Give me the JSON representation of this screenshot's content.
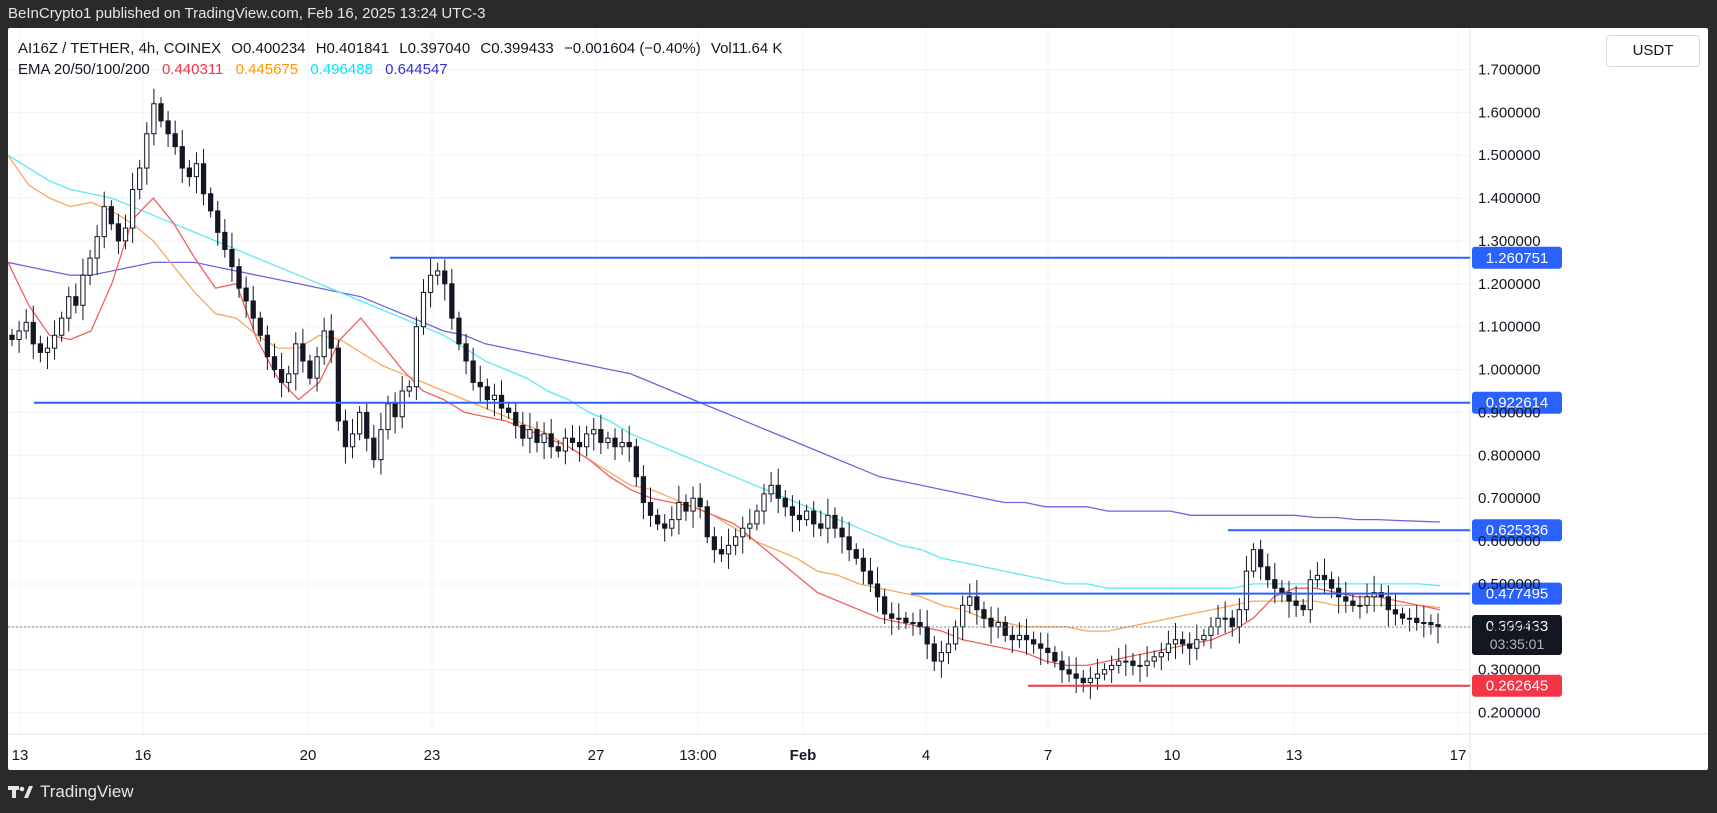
{
  "header": {
    "publisher_text": "BeInCrypto1 published on TradingView.com, Feb 16, 2025 13:24 UTC-3"
  },
  "footer": {
    "brand": "TradingView"
  },
  "legend": {
    "symbol": "AI16Z / TETHER, 4h, COINEX",
    "open": "O0.400234",
    "high": "H0.401841",
    "low": "L0.397040",
    "close": "C0.399433",
    "change": "−0.001604 (−0.40%)",
    "volume": "Vol11.64 K",
    "ema_label": "EMA 20/50/100/200",
    "ema_values": [
      {
        "value": "0.440311",
        "color": "#f23645"
      },
      {
        "value": "0.445675",
        "color": "#ff9800"
      },
      {
        "value": "0.496488",
        "color": "#00e5ff"
      },
      {
        "value": "0.644547",
        "color": "#2f2fd6"
      }
    ]
  },
  "currency": "USDT",
  "chart_data": {
    "type": "candlestick",
    "ylim": [
      0.15,
      1.75
    ],
    "y_ticks": [
      "1.700000",
      "1.600000",
      "1.500000",
      "1.400000",
      "1.300000",
      "1.200000",
      "1.100000",
      "1.000000",
      "0.900000",
      "0.800000",
      "0.700000",
      "0.600000",
      "0.500000",
      "0.400000",
      "0.300000",
      "0.200000"
    ],
    "x_ticks": [
      "13",
      "16",
      "20",
      "23",
      "27",
      "13:00",
      "Feb",
      "4",
      "7",
      "10",
      "13",
      "17"
    ],
    "levels": [
      {
        "value": 1.260751,
        "label": "1.260751",
        "color": "#2962ff"
      },
      {
        "value": 0.922614,
        "label": "0.922614",
        "color": "#2962ff"
      },
      {
        "value": 0.625336,
        "label": "0.625336",
        "color": "#2962ff"
      },
      {
        "value": 0.477495,
        "label": "0.477495",
        "color": "#2962ff"
      },
      {
        "value": 0.262645,
        "label": "0.262645",
        "color": "#f23645"
      }
    ],
    "last_price": {
      "value": 0.399433,
      "label": "0.399433",
      "countdown": "03:35:01"
    },
    "closes": [
      1.07,
      1.09,
      1.11,
      1.06,
      1.04,
      1.05,
      1.08,
      1.12,
      1.17,
      1.15,
      1.22,
      1.26,
      1.31,
      1.38,
      1.34,
      1.3,
      1.33,
      1.42,
      1.47,
      1.55,
      1.62,
      1.58,
      1.55,
      1.52,
      1.47,
      1.45,
      1.48,
      1.41,
      1.37,
      1.32,
      1.28,
      1.24,
      1.19,
      1.16,
      1.12,
      1.08,
      1.03,
      1.0,
      0.97,
      0.99,
      1.06,
      1.02,
      0.98,
      1.03,
      1.09,
      1.05,
      0.88,
      0.82,
      0.85,
      0.9,
      0.84,
      0.79,
      0.86,
      0.92,
      0.89,
      0.95,
      0.96,
      1.1,
      1.18,
      1.22,
      1.23,
      1.2,
      1.12,
      1.06,
      1.02,
      0.97,
      0.96,
      0.93,
      0.94,
      0.91,
      0.9,
      0.87,
      0.84,
      0.86,
      0.83,
      0.85,
      0.82,
      0.81,
      0.84,
      0.83,
      0.82,
      0.85,
      0.86,
      0.83,
      0.84,
      0.82,
      0.83,
      0.82,
      0.75,
      0.69,
      0.66,
      0.64,
      0.63,
      0.65,
      0.69,
      0.67,
      0.7,
      0.68,
      0.61,
      0.58,
      0.57,
      0.59,
      0.61,
      0.63,
      0.64,
      0.67,
      0.71,
      0.73,
      0.7,
      0.68,
      0.66,
      0.65,
      0.67,
      0.64,
      0.63,
      0.66,
      0.63,
      0.61,
      0.58,
      0.56,
      0.53,
      0.5,
      0.47,
      0.43,
      0.42,
      0.42,
      0.41,
      0.41,
      0.4,
      0.36,
      0.32,
      0.34,
      0.36,
      0.4,
      0.45,
      0.47,
      0.44,
      0.42,
      0.4,
      0.41,
      0.38,
      0.37,
      0.38,
      0.37,
      0.36,
      0.35,
      0.34,
      0.32,
      0.3,
      0.29,
      0.28,
      0.27,
      0.28,
      0.29,
      0.3,
      0.31,
      0.32,
      0.32,
      0.31,
      0.31,
      0.32,
      0.33,
      0.34,
      0.36,
      0.37,
      0.36,
      0.35,
      0.37,
      0.38,
      0.4,
      0.42,
      0.42,
      0.4,
      0.44,
      0.53,
      0.58,
      0.54,
      0.51,
      0.49,
      0.48,
      0.46,
      0.45,
      0.44,
      0.51,
      0.52,
      0.51,
      0.49,
      0.47,
      0.46,
      0.45,
      0.45,
      0.47,
      0.48,
      0.47,
      0.44,
      0.43,
      0.42,
      0.42,
      0.41,
      0.41,
      0.405,
      0.4
    ],
    "ema20": [
      1.25,
      1.15,
      1.08,
      1.07,
      1.09,
      1.2,
      1.35,
      1.4,
      1.34,
      1.26,
      1.19,
      1.2,
      1.07,
      0.98,
      0.93,
      0.97,
      1.07,
      1.12,
      1.06,
      1.0,
      0.95,
      0.93,
      0.9,
      0.89,
      0.88,
      0.86,
      0.84,
      0.82,
      0.79,
      0.75,
      0.72,
      0.7,
      0.69,
      0.68,
      0.66,
      0.64,
      0.6,
      0.56,
      0.52,
      0.48,
      0.46,
      0.44,
      0.42,
      0.41,
      0.4,
      0.39,
      0.37,
      0.36,
      0.35,
      0.34,
      0.32,
      0.31,
      0.31,
      0.32,
      0.33,
      0.34,
      0.35,
      0.36,
      0.37,
      0.39,
      0.42,
      0.47,
      0.49,
      0.49,
      0.48,
      0.47,
      0.47,
      0.46,
      0.45,
      0.44
    ],
    "ema50": [
      1.5,
      1.43,
      1.4,
      1.38,
      1.39,
      1.37,
      1.34,
      1.3,
      1.24,
      1.18,
      1.13,
      1.12,
      1.08,
      1.05,
      1.05,
      1.08,
      1.07,
      1.04,
      1.01,
      0.99,
      0.97,
      0.95,
      0.93,
      0.91,
      0.89,
      0.87,
      0.85,
      0.82,
      0.79,
      0.76,
      0.73,
      0.72,
      0.7,
      0.68,
      0.66,
      0.63,
      0.6,
      0.58,
      0.56,
      0.53,
      0.52,
      0.5,
      0.49,
      0.48,
      0.47,
      0.45,
      0.44,
      0.42,
      0.41,
      0.4,
      0.4,
      0.4,
      0.39,
      0.39,
      0.4,
      0.41,
      0.42,
      0.43,
      0.44,
      0.45,
      0.46,
      0.46,
      0.46,
      0.46,
      0.45,
      0.45,
      0.45,
      0.45,
      0.45,
      0.445
    ],
    "ema100": [
      1.5,
      1.47,
      1.44,
      1.42,
      1.41,
      1.4,
      1.38,
      1.36,
      1.34,
      1.32,
      1.3,
      1.28,
      1.26,
      1.24,
      1.22,
      1.2,
      1.18,
      1.16,
      1.14,
      1.12,
      1.1,
      1.08,
      1.05,
      1.02,
      1.0,
      0.98,
      0.95,
      0.93,
      0.9,
      0.88,
      0.85,
      0.83,
      0.81,
      0.79,
      0.77,
      0.75,
      0.73,
      0.71,
      0.69,
      0.67,
      0.65,
      0.63,
      0.61,
      0.59,
      0.58,
      0.56,
      0.55,
      0.54,
      0.53,
      0.52,
      0.51,
      0.5,
      0.5,
      0.49,
      0.49,
      0.49,
      0.49,
      0.49,
      0.49,
      0.49,
      0.5,
      0.5,
      0.5,
      0.5,
      0.5,
      0.5,
      0.5,
      0.5,
      0.5,
      0.496
    ],
    "ema200": [
      1.25,
      1.24,
      1.23,
      1.22,
      1.22,
      1.23,
      1.24,
      1.25,
      1.25,
      1.25,
      1.24,
      1.23,
      1.22,
      1.21,
      1.2,
      1.19,
      1.18,
      1.17,
      1.15,
      1.13,
      1.11,
      1.09,
      1.08,
      1.06,
      1.05,
      1.04,
      1.03,
      1.02,
      1.01,
      1.0,
      0.99,
      0.97,
      0.95,
      0.93,
      0.91,
      0.89,
      0.87,
      0.85,
      0.83,
      0.81,
      0.79,
      0.77,
      0.75,
      0.74,
      0.73,
      0.72,
      0.71,
      0.7,
      0.69,
      0.69,
      0.68,
      0.68,
      0.68,
      0.67,
      0.67,
      0.67,
      0.67,
      0.66,
      0.66,
      0.66,
      0.66,
      0.66,
      0.66,
      0.655,
      0.655,
      0.65,
      0.65,
      0.648,
      0.646,
      0.6445
    ]
  }
}
